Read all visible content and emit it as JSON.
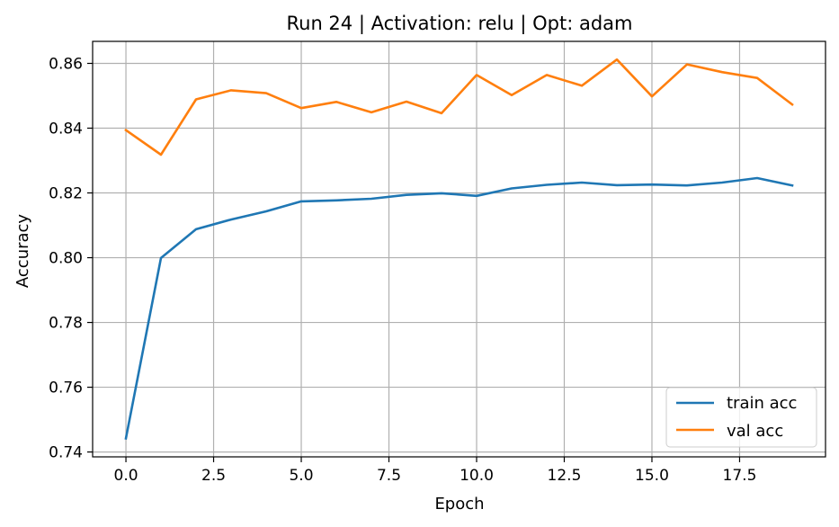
{
  "chart_data": {
    "type": "line",
    "title": "Run 24 | Activation: relu | Opt: adam",
    "xlabel": "Epoch",
    "ylabel": "Accuracy",
    "xlim": [
      -0.95,
      19.95
    ],
    "ylim": [
      0.7385,
      0.8668
    ],
    "grid": true,
    "legend_position": "lower right",
    "xticks": [
      0.0,
      2.5,
      5.0,
      7.5,
      10.0,
      12.5,
      15.0,
      17.5
    ],
    "xtick_labels": [
      "0.0",
      "2.5",
      "5.0",
      "7.5",
      "10.0",
      "12.5",
      "15.0",
      "17.5"
    ],
    "yticks": [
      0.74,
      0.76,
      0.78,
      0.8,
      0.82,
      0.84,
      0.86
    ],
    "ytick_labels": [
      "0.74",
      "0.76",
      "0.78",
      "0.80",
      "0.82",
      "0.84",
      "0.86"
    ],
    "x": [
      0,
      1,
      2,
      3,
      4,
      5,
      6,
      7,
      8,
      9,
      10,
      11,
      12,
      13,
      14,
      15,
      16,
      17,
      18,
      19
    ],
    "series": [
      {
        "name": "train acc",
        "color": "#1f77b4",
        "values": [
          0.7442,
          0.7999,
          0.8088,
          0.8118,
          0.8143,
          0.8174,
          0.8177,
          0.8182,
          0.8194,
          0.8199,
          0.8191,
          0.8214,
          0.8225,
          0.8232,
          0.8224,
          0.8226,
          0.8223,
          0.8232,
          0.8246,
          0.8223
        ]
      },
      {
        "name": "val acc",
        "color": "#ff7f0e",
        "values": [
          0.8394,
          0.8318,
          0.8489,
          0.8517,
          0.8508,
          0.8462,
          0.8481,
          0.8449,
          0.8482,
          0.8446,
          0.8564,
          0.8502,
          0.8564,
          0.8531,
          0.8612,
          0.8498,
          0.8597,
          0.8573,
          0.8555,
          0.8473
        ]
      }
    ]
  }
}
